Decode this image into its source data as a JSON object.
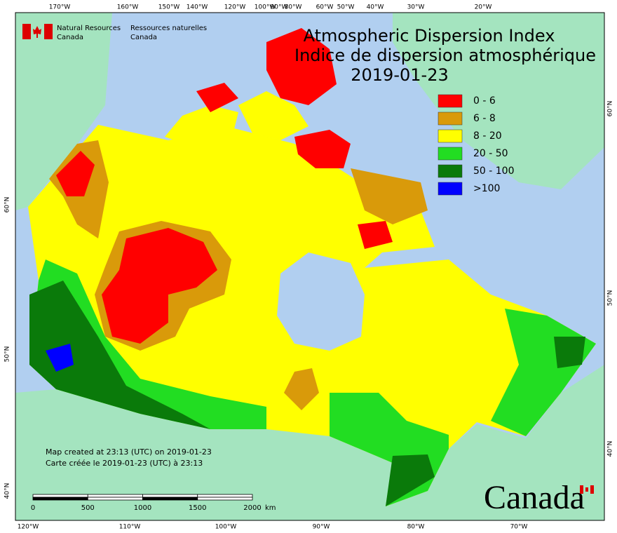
{
  "title": {
    "en": "Atmospheric Dispersion Index",
    "fr": "Indice de dispersion atmosphérique",
    "date": "2019-01-23"
  },
  "agency": {
    "en": [
      "Natural Resources",
      "Canada"
    ],
    "fr": [
      "Ressources naturelles",
      "Canada"
    ]
  },
  "legend": [
    {
      "label": "0 - 6",
      "color": "#ff0000"
    },
    {
      "label": "6 - 8",
      "color": "#d99a0a"
    },
    {
      "label": "8 - 20",
      "color": "#ffff00"
    },
    {
      "label": "20 - 50",
      "color": "#22dd22"
    },
    {
      "label": "50 - 100",
      "color": "#0a7a0a"
    },
    {
      "label": ">100",
      "color": "#0000ff"
    }
  ],
  "graticule": {
    "top": [
      "170°W",
      "160°W",
      "150°W",
      "140°W",
      "120°W",
      "100°W",
      "90°W",
      "80°W",
      "60°W",
      "50°W",
      "40°W",
      "30°W",
      "20°W"
    ],
    "bottom": [
      "120°W",
      "110°W",
      "100°W",
      "90°W",
      "80°W",
      "70°W"
    ],
    "left": [
      "60°N",
      "50°N",
      "40°N"
    ],
    "right": [
      "60°N",
      "50°N",
      "40°N"
    ]
  },
  "scale_bar": {
    "ticks": [
      "0",
      "500",
      "1000",
      "1500",
      "2000"
    ],
    "unit": "km"
  },
  "credits": [
    "Map created at 23:13 (UTC) on 2019-01-23",
    "Carte créée le 2019-01-23 (UTC) à 23:13"
  ],
  "wordmark": "Canada"
}
